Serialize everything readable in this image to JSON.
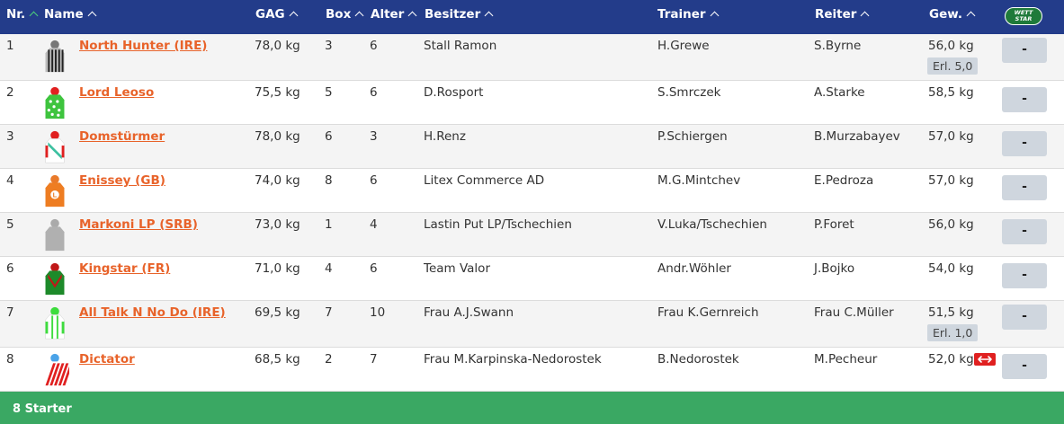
{
  "header": {
    "nr": "Nr.",
    "name": "Name",
    "gag": "GAG",
    "box": "Box",
    "alter": "Alter",
    "besitzer": "Besitzer",
    "trainer": "Trainer",
    "reiter": "Reiter",
    "gew": "Gew.",
    "wettstar_line1": "WETT",
    "wettstar_line2": "STAR"
  },
  "rows": [
    {
      "nr": "1",
      "name": "North Hunter (IRE)",
      "gag": "78,0 kg",
      "box": "3",
      "alter": "6",
      "besitzer": "Stall Ramon",
      "trainer": "H.Grewe",
      "reiter": "S.Byrne",
      "gew": "56,0 kg",
      "erl": "Erl. 5,0",
      "bet": "-",
      "silk": "silk-grey-black-stripes"
    },
    {
      "nr": "2",
      "name": "Lord Leoso",
      "gag": "75,5 kg",
      "box": "5",
      "alter": "6",
      "besitzer": "D.Rosport",
      "trainer": "S.Smrczek",
      "reiter": "A.Starke",
      "gew": "58,5 kg",
      "bet": "-",
      "silk": "silk-green-white-spots"
    },
    {
      "nr": "3",
      "name": "Domstürmer",
      "gag": "78,0 kg",
      "box": "6",
      "alter": "3",
      "besitzer": "H.Renz",
      "trainer": "P.Schiergen",
      "reiter": "B.Murzabayev",
      "gew": "57,0 kg",
      "bet": "-",
      "silk": "silk-white-red-sash"
    },
    {
      "nr": "4",
      "name": "Enissey (GB)",
      "gag": "74,0 kg",
      "box": "8",
      "alter": "6",
      "besitzer": "Litex Commerce AD",
      "trainer": "M.G.Mintchev",
      "reiter": "E.Pedroza",
      "gew": "57,0 kg",
      "bet": "-",
      "silk": "silk-orange-L",
      "silk_letter": "L"
    },
    {
      "nr": "5",
      "name": "Markoni LP (SRB)",
      "gag": "73,0 kg",
      "box": "1",
      "alter": "4",
      "besitzer": "Lastin Put LP/Tschechien",
      "trainer": "V.Luka/Tschechien",
      "reiter": "P.Foret",
      "gew": "56,0 kg",
      "bet": "-",
      "silk": "silk-grey"
    },
    {
      "nr": "6",
      "name": "Kingstar (FR)",
      "gag": "71,0 kg",
      "box": "4",
      "alter": "6",
      "besitzer": "Team Valor",
      "trainer": "Andr.Wöhler",
      "reiter": "J.Bojko",
      "gew": "54,0 kg",
      "bet": "-",
      "silk": "silk-green-red-chevron"
    },
    {
      "nr": "7",
      "name": "All Talk N No Do (IRE)",
      "gag": "69,5 kg",
      "box": "7",
      "alter": "10",
      "besitzer": "Frau A.J.Swann",
      "trainer": "Frau K.Gernreich",
      "reiter": "Frau C.Müller",
      "gew": "51,5 kg",
      "erl": "Erl. 1,0",
      "bet": "-",
      "silk": "silk-white-green-braces"
    },
    {
      "nr": "8",
      "name": "Dictator",
      "gag": "68,5 kg",
      "box": "2",
      "alter": "7",
      "besitzer": "Frau M.Karpinska-Nedorostek",
      "trainer": "B.Nedorostek",
      "reiter": "M.Pecheur",
      "gew": "52,0 kg",
      "swap": true,
      "bet": "-",
      "silk": "silk-red-white-diagonal"
    }
  ],
  "colors": {
    "header_bg": "#233c8a",
    "footer_bg": "#3aa863",
    "name_link": "#e8632a",
    "sort_active": "#4cd07a"
  },
  "footer": {
    "text": "8 Starter"
  }
}
